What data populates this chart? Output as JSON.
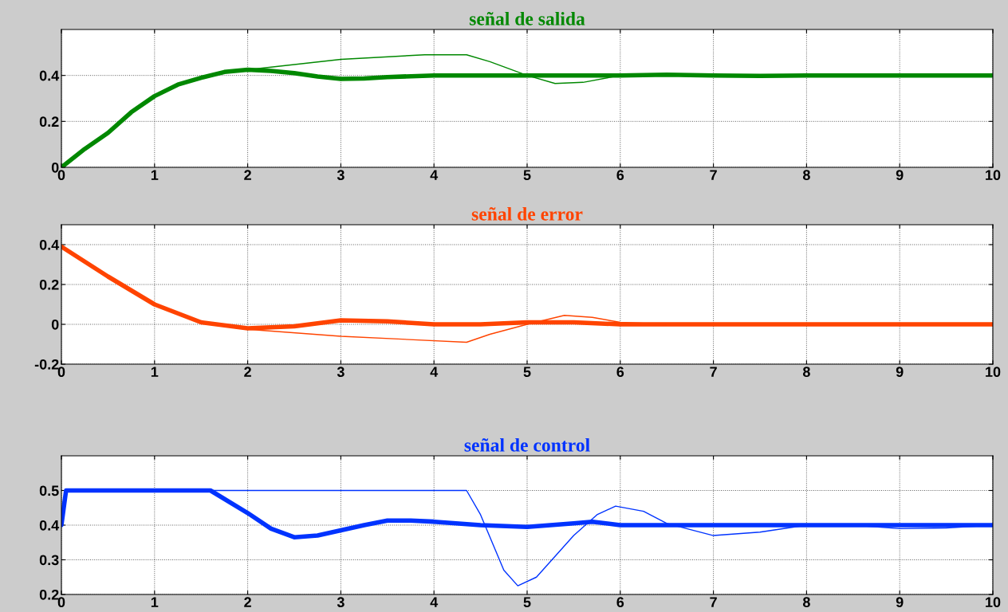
{
  "chart_data": [
    {
      "type": "line",
      "title": "señal de salida",
      "xlim": [
        0,
        10
      ],
      "xticks": [
        0,
        1,
        2,
        3,
        4,
        5,
        6,
        7,
        8,
        9,
        10
      ],
      "ylim": [
        0,
        0.6
      ],
      "yticks": [
        0,
        0.2,
        0.4
      ],
      "grid": true,
      "series": [
        {
          "color": "#008800",
          "x": [
            0,
            0.25,
            0.5,
            0.75,
            1,
            1.25,
            1.5,
            1.75,
            2,
            2.25,
            2.5,
            2.75,
            3,
            3.25,
            3.5,
            4,
            5,
            6,
            6.5,
            7,
            7.5,
            8,
            10
          ],
          "values": [
            0,
            0.08,
            0.15,
            0.24,
            0.31,
            0.36,
            0.39,
            0.415,
            0.425,
            0.42,
            0.41,
            0.395,
            0.385,
            0.387,
            0.393,
            0.4,
            0.4,
            0.4,
            0.403,
            0.4,
            0.398,
            0.4,
            0.4
          ]
        },
        {
          "color": "#008800",
          "x": [
            0,
            0.25,
            0.5,
            0.75,
            1,
            1.25,
            1.5,
            1.75,
            2,
            3,
            3.9,
            4.35,
            4.6,
            5,
            5.3,
            5.6,
            6,
            6.5,
            7,
            10
          ],
          "values": [
            0,
            0.08,
            0.15,
            0.24,
            0.31,
            0.36,
            0.39,
            0.415,
            0.425,
            0.47,
            0.49,
            0.49,
            0.46,
            0.4,
            0.365,
            0.37,
            0.4,
            0.405,
            0.4,
            0.4
          ]
        }
      ]
    },
    {
      "type": "line",
      "title": "señal de error",
      "xlim": [
        0,
        10
      ],
      "xticks": [
        0,
        1,
        2,
        3,
        4,
        5,
        6,
        7,
        8,
        9,
        10
      ],
      "ylim": [
        -0.2,
        0.5
      ],
      "yticks": [
        -0.2,
        0,
        0.2,
        0.4
      ],
      "grid": true,
      "series": [
        {
          "color": "#ff4400",
          "x": [
            0,
            0.5,
            1,
            1.5,
            2,
            2.5,
            3,
            3.5,
            4,
            4.5,
            5,
            5.5,
            6,
            10
          ],
          "values": [
            0.39,
            0.24,
            0.1,
            0.01,
            -0.02,
            -0.01,
            0.02,
            0.015,
            0,
            0,
            0.01,
            0.01,
            0,
            0
          ]
        },
        {
          "color": "#ff4400",
          "x": [
            0,
            0.5,
            1,
            1.5,
            1.75,
            2,
            3,
            4.35,
            4.6,
            5,
            5.4,
            5.7,
            6,
            6.5,
            10
          ],
          "values": [
            0.39,
            0.24,
            0.1,
            0.01,
            -0.01,
            -0.025,
            -0.06,
            -0.09,
            -0.05,
            0,
            0.045,
            0.035,
            0.01,
            0,
            0
          ]
        }
      ]
    },
    {
      "type": "line",
      "title": "señal de control",
      "xlim": [
        0,
        10
      ],
      "xticks": [
        0,
        1,
        2,
        3,
        4,
        5,
        6,
        7,
        8,
        9,
        10
      ],
      "ylim": [
        0.2,
        0.6
      ],
      "yticks": [
        0.2,
        0.3,
        0.4,
        0.5
      ],
      "grid": true,
      "series": [
        {
          "color": "#0033ff",
          "x": [
            0,
            0.05,
            1.6,
            2,
            2.25,
            2.5,
            2.75,
            3,
            3.25,
            3.5,
            3.75,
            4,
            4.5,
            5,
            5.5,
            5.7,
            6,
            10
          ],
          "values": [
            0.4,
            0.5,
            0.5,
            0.435,
            0.39,
            0.365,
            0.37,
            0.385,
            0.4,
            0.413,
            0.413,
            0.41,
            0.4,
            0.395,
            0.405,
            0.41,
            0.4,
            0.4
          ]
        },
        {
          "color": "#0033ff",
          "x": [
            0,
            0.05,
            4.35,
            4.5,
            4.75,
            4.9,
            5.1,
            5.5,
            5.75,
            5.95,
            6.25,
            6.5,
            7,
            7.5,
            8,
            8.5,
            9,
            9.5,
            10
          ],
          "values": [
            0.4,
            0.5,
            0.5,
            0.43,
            0.27,
            0.225,
            0.25,
            0.37,
            0.43,
            0.455,
            0.44,
            0.405,
            0.37,
            0.38,
            0.4,
            0.4,
            0.39,
            0.392,
            0.4
          ]
        }
      ]
    }
  ]
}
